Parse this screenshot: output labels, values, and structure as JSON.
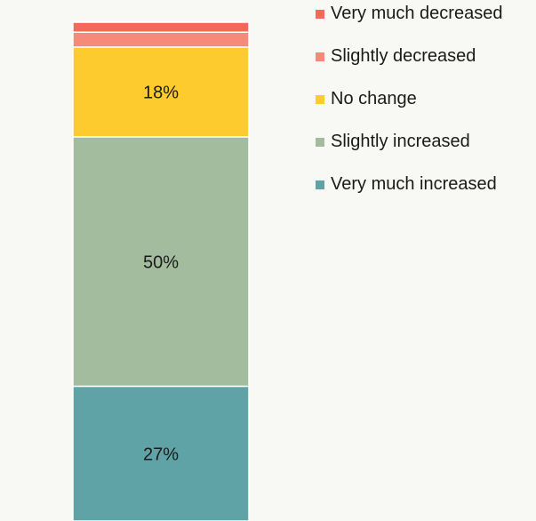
{
  "chart_data": {
    "type": "bar",
    "stacked": true,
    "categories": [
      ""
    ],
    "ylim": [
      0,
      100
    ],
    "grid": false,
    "legend_position": "top-right",
    "series": [
      {
        "name": "Very much decreased",
        "values": [
          2
        ],
        "color": "#f4685a",
        "label": ""
      },
      {
        "name": "Slightly decreased",
        "values": [
          3
        ],
        "color": "#f58a7b",
        "label": ""
      },
      {
        "name": "No change",
        "values": [
          18
        ],
        "color": "#fecb2f",
        "label": "18%"
      },
      {
        "name": "Slightly increased",
        "values": [
          50
        ],
        "color": "#a3bc9e",
        "label": "50%"
      },
      {
        "name": "Very much increased",
        "values": [
          27
        ],
        "color": "#5fa3a6",
        "label": "27%"
      }
    ]
  }
}
